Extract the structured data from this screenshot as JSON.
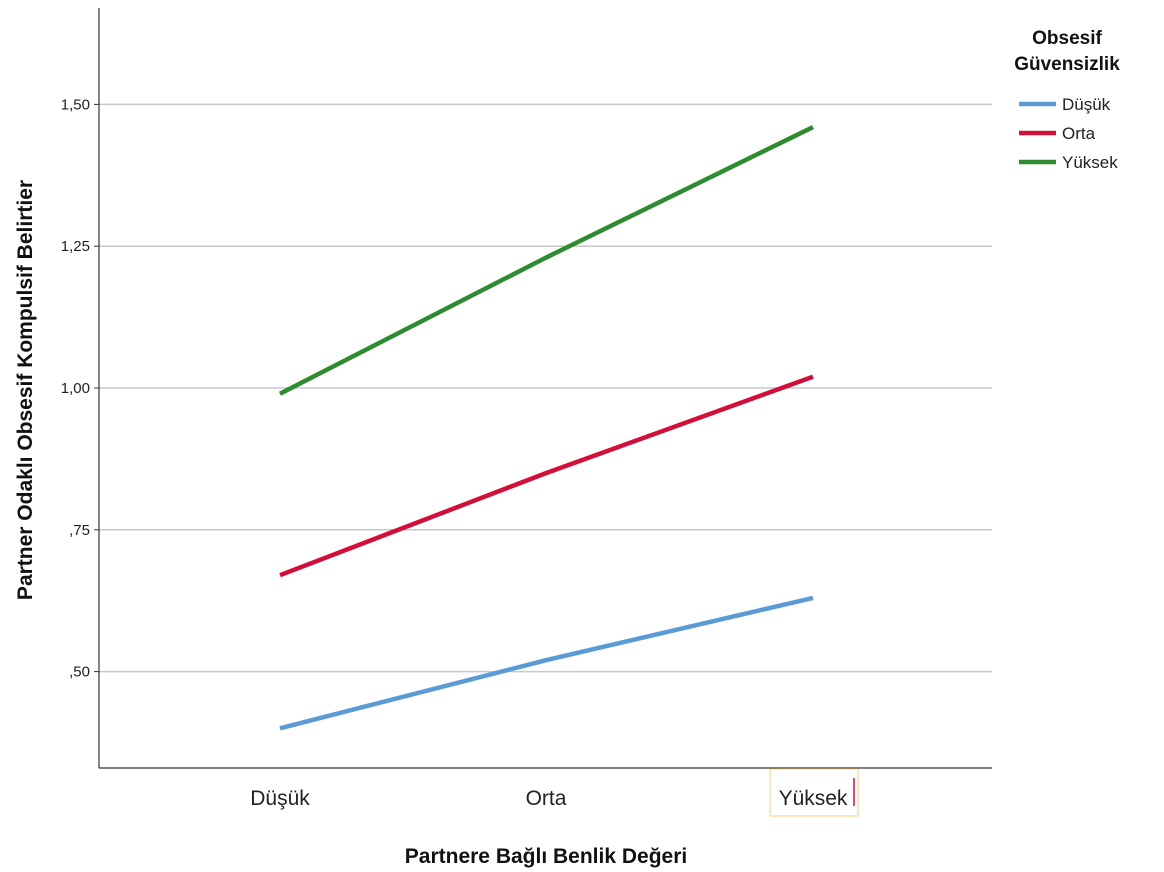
{
  "chart_data": {
    "type": "line",
    "categories": [
      "Düşük",
      "Orta",
      "Yüksek"
    ],
    "xlabel": "Partnere Bağlı Benlik Değeri",
    "ylabel": "Partner Odaklı Obsesif Kompulsif Belirtier",
    "yticks": [
      "1,50",
      "1,25",
      "1,00",
      ",75",
      ",50"
    ],
    "ytick_values": [
      1.5,
      1.25,
      1.0,
      0.75,
      0.5
    ],
    "ylim": [
      0.33,
      1.67
    ],
    "grid": true,
    "legend": {
      "title_line1": "Obsesif",
      "title_line2": "Güvensizlik",
      "placement": "top-right"
    },
    "series": [
      {
        "name": "Düşük",
        "color": "#5b9bd5",
        "values": [
          0.4,
          0.52,
          0.63
        ]
      },
      {
        "name": "Orta",
        "color": "#d0103a",
        "values": [
          0.67,
          0.85,
          1.02
        ]
      },
      {
        "name": "Yüksek",
        "color": "#2e8b2e",
        "values": [
          0.99,
          1.23,
          1.46
        ]
      }
    ]
  }
}
